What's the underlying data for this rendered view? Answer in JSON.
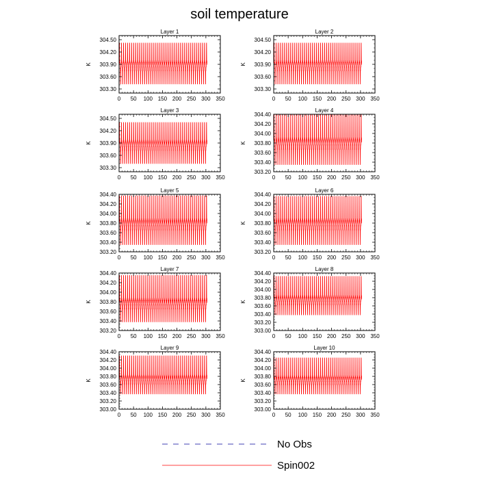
{
  "figure": {
    "title": "soil temperature"
  },
  "legend": {
    "entries": [
      {
        "label": "No Obs",
        "color": "#00009a",
        "style": "dashed"
      },
      {
        "label": "Spin002",
        "color": "#ff0000",
        "style": "solid"
      }
    ]
  },
  "colors": {
    "series": "#ff0000",
    "noobs": "#00009a",
    "axis": "#000000"
  },
  "chart_data": [
    {
      "type": "line",
      "title": "Layer 1",
      "ylabel": "K",
      "xlim": [
        0,
        350
      ],
      "ylim": [
        303.2,
        304.6
      ],
      "xticks": [
        0,
        50,
        100,
        150,
        200,
        250,
        300,
        350
      ],
      "yticks": [
        303.3,
        303.6,
        303.9,
        304.2,
        304.5
      ],
      "ytick_labels": [
        "303.30",
        "303.60",
        "303.90",
        "304.20",
        "304.50"
      ],
      "series": [
        {
          "name": "Spin002",
          "x_range": [
            1,
            304
          ],
          "period_days": 7,
          "min": 303.42,
          "max": 304.42,
          "band": [
            303.7,
            303.98
          ]
        }
      ]
    },
    {
      "type": "line",
      "title": "Layer 2",
      "ylabel": "K",
      "xlim": [
        0,
        350
      ],
      "ylim": [
        303.2,
        304.6
      ],
      "xticks": [
        0,
        50,
        100,
        150,
        200,
        250,
        300,
        350
      ],
      "yticks": [
        303.3,
        303.6,
        303.9,
        304.2,
        304.5
      ],
      "ytick_labels": [
        "303.30",
        "303.60",
        "303.90",
        "304.20",
        "304.50"
      ],
      "series": [
        {
          "name": "Spin002",
          "x_range": [
            1,
            304
          ],
          "period_days": 7,
          "min": 303.42,
          "max": 304.42,
          "band": [
            303.7,
            303.98
          ]
        }
      ]
    },
    {
      "type": "line",
      "title": "Layer 3",
      "ylabel": "K",
      "xlim": [
        0,
        350
      ],
      "ylim": [
        303.2,
        304.6
      ],
      "xticks": [
        0,
        50,
        100,
        150,
        200,
        250,
        300,
        350
      ],
      "yticks": [
        303.3,
        303.6,
        303.9,
        304.2,
        304.5
      ],
      "ytick_labels": [
        "303.30",
        "303.60",
        "303.90",
        "304.20",
        "304.50"
      ],
      "series": [
        {
          "name": "Spin002",
          "x_range": [
            1,
            304
          ],
          "period_days": 7,
          "min": 303.4,
          "max": 304.4,
          "band": [
            303.68,
            303.96
          ]
        }
      ]
    },
    {
      "type": "line",
      "title": "Layer 4",
      "ylabel": "K",
      "xlim": [
        0,
        350
      ],
      "ylim": [
        303.2,
        304.4
      ],
      "xticks": [
        0,
        50,
        100,
        150,
        200,
        250,
        300,
        350
      ],
      "yticks": [
        303.2,
        303.4,
        303.6,
        303.8,
        304.0,
        304.2,
        304.4
      ],
      "ytick_labels": [
        "303.20",
        "303.40",
        "303.60",
        "303.80",
        "304.00",
        "304.20",
        "304.40"
      ],
      "series": [
        {
          "name": "Spin002",
          "x_range": [
            1,
            304
          ],
          "period_days": 7,
          "min": 303.35,
          "max": 304.39,
          "band": [
            303.63,
            303.9
          ]
        }
      ]
    },
    {
      "type": "line",
      "title": "Layer 5",
      "ylabel": "K",
      "xlim": [
        0,
        350
      ],
      "ylim": [
        303.2,
        304.4
      ],
      "xticks": [
        0,
        50,
        100,
        150,
        200,
        250,
        300,
        350
      ],
      "yticks": [
        303.2,
        303.4,
        303.6,
        303.8,
        304.0,
        304.2,
        304.4
      ],
      "ytick_labels": [
        "303.20",
        "303.40",
        "303.60",
        "303.80",
        "304.00",
        "304.20",
        "304.40"
      ],
      "series": [
        {
          "name": "Spin002",
          "x_range": [
            1,
            304
          ],
          "period_days": 7,
          "min": 303.35,
          "max": 304.37,
          "band": [
            303.62,
            303.88
          ]
        }
      ]
    },
    {
      "type": "line",
      "title": "Layer 6",
      "ylabel": "K",
      "xlim": [
        0,
        350
      ],
      "ylim": [
        303.2,
        304.4
      ],
      "xticks": [
        0,
        50,
        100,
        150,
        200,
        250,
        300,
        350
      ],
      "yticks": [
        303.2,
        303.4,
        303.6,
        303.8,
        304.0,
        304.2,
        304.4
      ],
      "ytick_labels": [
        "303.20",
        "303.40",
        "303.60",
        "303.80",
        "304.00",
        "304.20",
        "304.40"
      ],
      "series": [
        {
          "name": "Spin002",
          "x_range": [
            1,
            304
          ],
          "period_days": 7,
          "min": 303.35,
          "max": 304.36,
          "band": [
            303.62,
            303.88
          ]
        }
      ]
    },
    {
      "type": "line",
      "title": "Layer 7",
      "ylabel": "K",
      "xlim": [
        0,
        350
      ],
      "ylim": [
        303.2,
        304.4
      ],
      "xticks": [
        0,
        50,
        100,
        150,
        200,
        250,
        300,
        350
      ],
      "yticks": [
        303.2,
        303.4,
        303.6,
        303.8,
        304.0,
        304.2,
        304.4
      ],
      "ytick_labels": [
        "303.20",
        "303.40",
        "303.60",
        "303.80",
        "304.00",
        "304.20",
        "304.40"
      ],
      "series": [
        {
          "name": "Spin002",
          "x_range": [
            1,
            304
          ],
          "period_days": 7,
          "min": 303.38,
          "max": 304.35,
          "band": [
            303.62,
            303.86
          ]
        }
      ]
    },
    {
      "type": "line",
      "title": "Layer 8",
      "ylabel": "K",
      "xlim": [
        0,
        350
      ],
      "ylim": [
        303.0,
        304.4
      ],
      "xticks": [
        0,
        50,
        100,
        150,
        200,
        250,
        300,
        350
      ],
      "yticks": [
        303.0,
        303.2,
        303.4,
        303.6,
        303.8,
        304.0,
        304.2,
        304.4
      ],
      "ytick_labels": [
        "303.00",
        "303.20",
        "303.40",
        "303.60",
        "303.80",
        "304.00",
        "304.20",
        "304.40"
      ],
      "series": [
        {
          "name": "Spin002",
          "x_range": [
            1,
            304
          ],
          "period_days": 7,
          "min": 303.38,
          "max": 304.32,
          "band": [
            303.6,
            303.84
          ]
        }
      ]
    },
    {
      "type": "line",
      "title": "Layer 9",
      "ylabel": "K",
      "xlim": [
        0,
        350
      ],
      "ylim": [
        303.0,
        304.4
      ],
      "xticks": [
        0,
        50,
        100,
        150,
        200,
        250,
        300,
        350
      ],
      "yticks": [
        303.0,
        303.2,
        303.4,
        303.6,
        303.8,
        304.0,
        304.2,
        304.4
      ],
      "ytick_labels": [
        "303.00",
        "303.20",
        "303.40",
        "303.60",
        "303.80",
        "304.00",
        "304.20",
        "304.40"
      ],
      "series": [
        {
          "name": "Spin002",
          "x_range": [
            1,
            304
          ],
          "period_days": 7,
          "min": 303.37,
          "max": 304.3,
          "band": [
            303.58,
            303.82
          ]
        }
      ]
    },
    {
      "type": "line",
      "title": "Layer 10",
      "ylabel": "K",
      "xlim": [
        0,
        350
      ],
      "ylim": [
        303.0,
        304.4
      ],
      "xticks": [
        0,
        50,
        100,
        150,
        200,
        250,
        300,
        350
      ],
      "yticks": [
        303.0,
        303.2,
        303.4,
        303.6,
        303.8,
        304.0,
        304.2,
        304.4
      ],
      "ytick_labels": [
        "303.00",
        "303.20",
        "303.40",
        "303.60",
        "303.80",
        "304.00",
        "304.20",
        "304.40"
      ],
      "series": [
        {
          "name": "Spin002",
          "x_range": [
            1,
            304
          ],
          "period_days": 7,
          "min": 303.37,
          "max": 304.25,
          "band": [
            303.57,
            303.8
          ]
        }
      ]
    }
  ]
}
